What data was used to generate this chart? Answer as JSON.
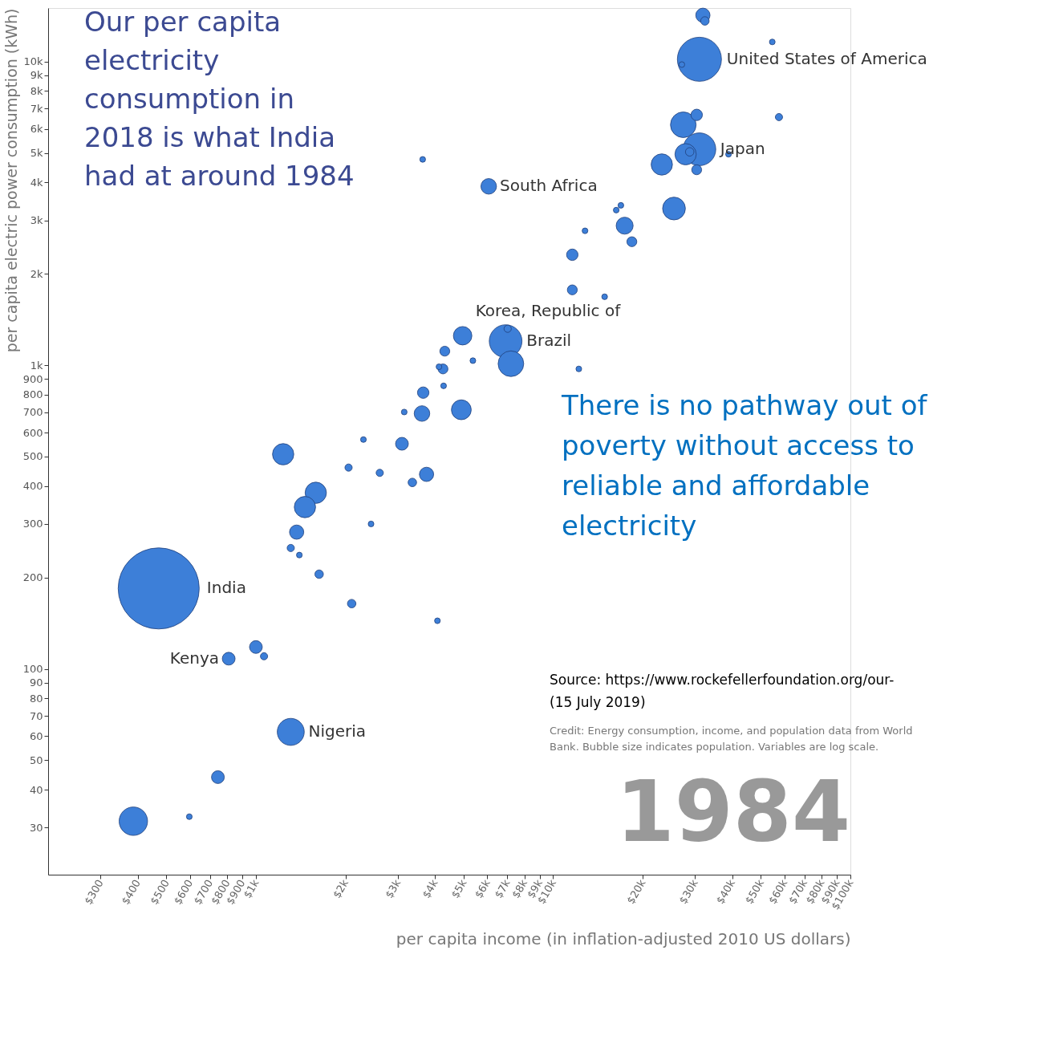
{
  "chart_data": {
    "type": "bubble",
    "title": "Our per capita electricity consumption in 2018 is what India had at around 1984",
    "xlabel": "per capita income (in inflation-adjusted 2010 US dollars)",
    "ylabel": "per capita electric power consumption (kWh)",
    "log": "xy",
    "grid": false,
    "legend": false,
    "marker": "circle",
    "xlim": [
      200,
      100000
    ],
    "ylim": [
      21,
      15000
    ],
    "xticks": [
      {
        "value": 300,
        "label": "$300"
      },
      {
        "value": 400,
        "label": "$400"
      },
      {
        "value": 500,
        "label": "$500"
      },
      {
        "value": 600,
        "label": "$600"
      },
      {
        "value": 700,
        "label": "$700"
      },
      {
        "value": 800,
        "label": "$800"
      },
      {
        "value": 900,
        "label": "$900"
      },
      {
        "value": 1000,
        "label": "$1k"
      },
      {
        "value": 2000,
        "label": "$2k"
      },
      {
        "value": 3000,
        "label": "$3k"
      },
      {
        "value": 4000,
        "label": "$4k"
      },
      {
        "value": 5000,
        "label": "$5k"
      },
      {
        "value": 6000,
        "label": "$6k"
      },
      {
        "value": 7000,
        "label": "$7k"
      },
      {
        "value": 8000,
        "label": "$8k"
      },
      {
        "value": 9000,
        "label": "$9k"
      },
      {
        "value": 10000,
        "label": "$10k"
      },
      {
        "value": 20000,
        "label": "$20k"
      },
      {
        "value": 30000,
        "label": "$30k"
      },
      {
        "value": 40000,
        "label": "$40k"
      },
      {
        "value": 50000,
        "label": "$50k"
      },
      {
        "value": 60000,
        "label": "$60k"
      },
      {
        "value": 70000,
        "label": "$70k"
      },
      {
        "value": 80000,
        "label": "$80k"
      },
      {
        "value": 90000,
        "label": "$90k"
      },
      {
        "value": 100000,
        "label": "$100k"
      }
    ],
    "yticks": [
      30,
      40,
      50,
      60,
      70,
      80,
      90,
      100,
      200,
      300,
      400,
      500,
      600,
      700,
      800,
      900,
      {
        "value": 1000,
        "label": "1k"
      },
      {
        "value": 2000,
        "label": "2k"
      },
      {
        "value": 3000,
        "label": "3k"
      },
      {
        "value": 4000,
        "label": "4k"
      },
      {
        "value": 5000,
        "label": "5k"
      },
      {
        "value": 6000,
        "label": "6k"
      },
      {
        "value": 7000,
        "label": "7k"
      },
      {
        "value": 8000,
        "label": "8k"
      },
      {
        "value": 9000,
        "label": "9k"
      },
      {
        "value": 10000,
        "label": "10k"
      }
    ],
    "series": [
      {
        "color": "#3d7fd8",
        "x": [
          471,
          387,
          597,
          745,
          1310,
          810,
          1000,
          1065,
          1235,
          1590,
          1462,
          1371,
          1310,
          1400,
          1632,
          2100,
          2050,
          2300,
          2610,
          2440,
          3100,
          3360,
          3750,
          3620,
          3155,
          3655,
          4080,
          4280,
          4260,
          4130,
          4320,
          4910,
          5370,
          4960,
          6920,
          7210,
          7030,
          12200,
          6070,
          3640,
          11600,
          11600,
          14900,
          12800,
          16300,
          16900,
          17400,
          18400,
          23200,
          25500,
          27400,
          30400,
          31050,
          27900,
          28800,
          30400,
          38900,
          31050,
          27100,
          31900,
          32400,
          54600,
          57500
        ],
        "values": [
          184,
          31.5,
          32.6,
          44,
          62,
          108,
          118,
          110,
          509,
          380,
          341,
          282,
          250,
          237,
          205,
          164,
          460,
          569,
          442,
          300,
          551,
          411,
          437,
          693,
          701,
          812,
          144,
          855,
          972,
          988,
          1112,
          713,
          1035,
          1250,
          1200,
          1011,
          1318,
          972,
          3880,
          4760,
          2310,
          1770,
          1680,
          2770,
          3240,
          3360,
          2880,
          2550,
          4580,
          3280,
          6190,
          6670,
          5140,
          4950,
          5040,
          4400,
          4950,
          10170,
          9770,
          14200,
          13600,
          11600,
          6560
        ],
        "sizes": [
          1,
          0.123,
          0.005,
          0.025,
          0.111,
          0.025,
          0.025,
          0.008,
          0.069,
          0.069,
          0.069,
          0.031,
          0.008,
          0.005,
          0.011,
          0.011,
          0.008,
          0.005,
          0.008,
          0.005,
          0.025,
          0.011,
          0.031,
          0.037,
          0.005,
          0.02,
          0.005,
          0.005,
          0.015,
          0.005,
          0.015,
          0.06,
          0.005,
          0.052,
          0.163,
          0.1,
          0.008,
          0.005,
          0.037,
          0.005,
          0.02,
          0.015,
          0.005,
          0.005,
          0.005,
          0.005,
          0.044,
          0.015,
          0.069,
          0.079,
          0.1,
          0.02,
          0.163,
          0.069,
          0.011,
          0.015,
          0.005,
          0.296,
          0.005,
          0.031,
          0.011,
          0.005,
          0.008
        ]
      }
    ],
    "annotations": [
      {
        "text": "India",
        "x": 471,
        "y": 184
      },
      {
        "text": "Kenya",
        "x": 810,
        "y": 108
      },
      {
        "text": "Nigeria",
        "x": 1310,
        "y": 62
      },
      {
        "text": "Korea, Republic of",
        "x": 4960,
        "y": 1250
      },
      {
        "text": "Brazil",
        "x": 6920,
        "y": 1200
      },
      {
        "text": "South Africa",
        "x": 6070,
        "y": 3880
      },
      {
        "text": "Japan",
        "x": 31050,
        "y": 5140
      },
      {
        "text": "United States of America",
        "x": 31050,
        "y": 10170
      },
      "There is no pathway out of poverty without access to reliable and affordable electricity",
      "Source: https://www.rockefellerfoundation.org/our- (15 July 2019)",
      "Credit: Energy consumption, income, and population data from World Bank. Bubble size indicates population. Variables are log scale.",
      "1984"
    ]
  }
}
